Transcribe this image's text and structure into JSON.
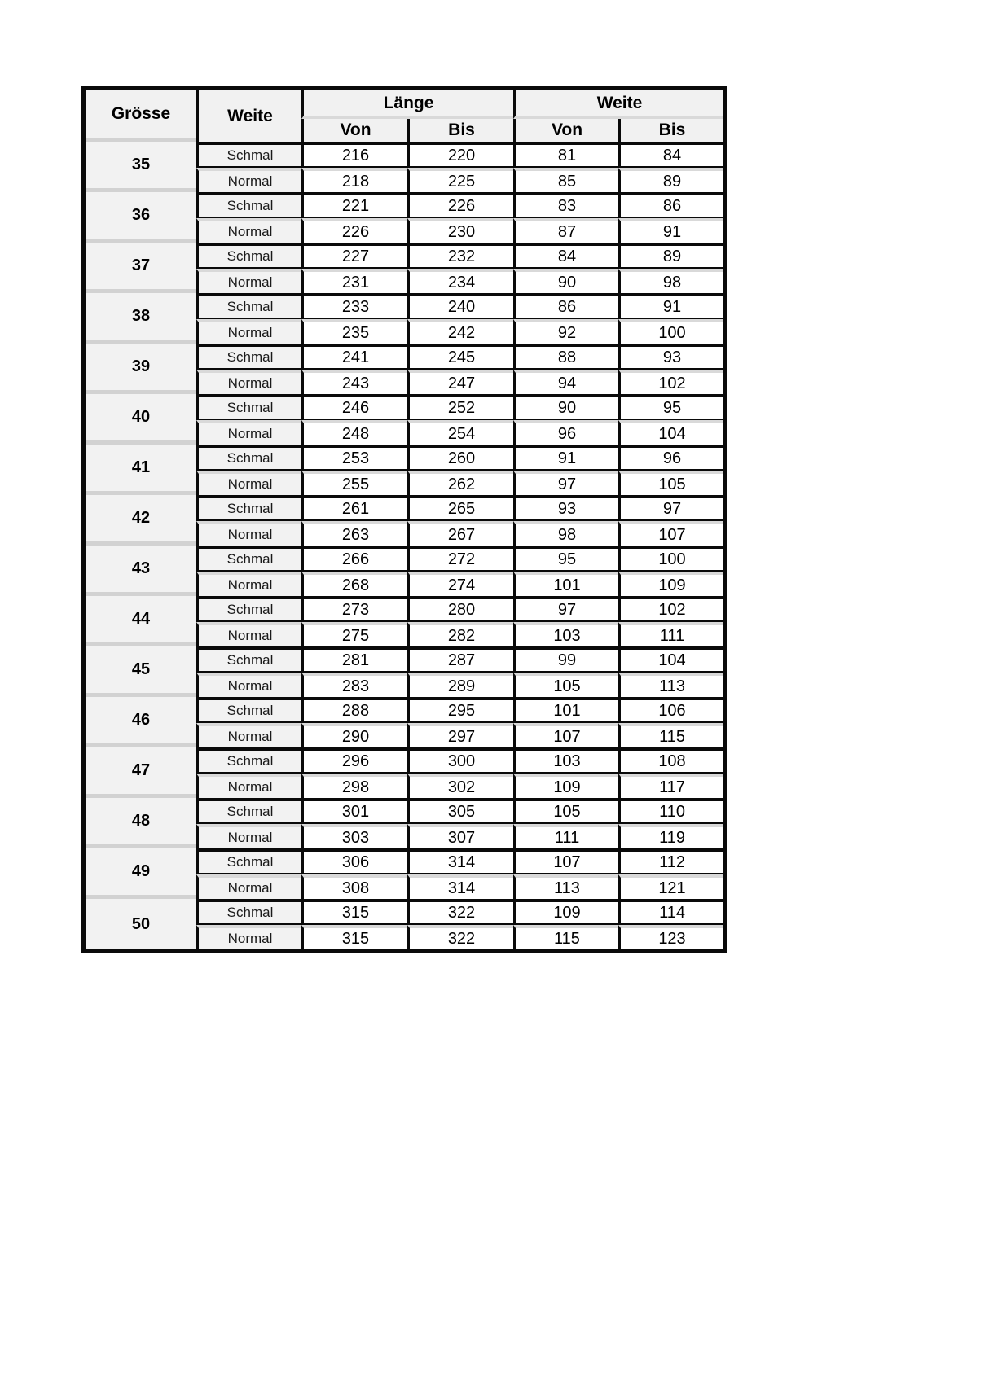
{
  "page": {
    "background": "#ffffff"
  },
  "colors": {
    "table_border": "#000000",
    "header_bg": "#f1f1f1",
    "label_column_bg": "#f2f2f2",
    "size_column_bg": "#f2f2f2",
    "row_separator_gray": "#d9d9d9",
    "size_separator_gray": "#d2d2d2",
    "data_cell_bg": "#ffffff",
    "text": "#000000"
  },
  "table": {
    "headers": {
      "size": "Grösse",
      "width_label": "Weite",
      "length_group": "Länge",
      "width_group": "Weite",
      "from": "Von",
      "to": "Bis"
    },
    "width_types": [
      "Schmal",
      "Normal"
    ],
    "rows": [
      {
        "size": "35",
        "variants": [
          {
            "label": "Schmal",
            "laenge_von": "216",
            "laenge_bis": "220",
            "weite_von": "81",
            "weite_bis": "84"
          },
          {
            "label": "Normal",
            "laenge_von": "218",
            "laenge_bis": "225",
            "weite_von": "85",
            "weite_bis": "89"
          }
        ]
      },
      {
        "size": "36",
        "variants": [
          {
            "label": "Schmal",
            "laenge_von": "221",
            "laenge_bis": "226",
            "weite_von": "83",
            "weite_bis": "86"
          },
          {
            "label": "Normal",
            "laenge_von": "226",
            "laenge_bis": "230",
            "weite_von": "87",
            "weite_bis": "91"
          }
        ]
      },
      {
        "size": "37",
        "variants": [
          {
            "label": "Schmal",
            "laenge_von": "227",
            "laenge_bis": "232",
            "weite_von": "84",
            "weite_bis": "89"
          },
          {
            "label": "Normal",
            "laenge_von": "231",
            "laenge_bis": "234",
            "weite_von": "90",
            "weite_bis": "98"
          }
        ]
      },
      {
        "size": "38",
        "variants": [
          {
            "label": "Schmal",
            "laenge_von": "233",
            "laenge_bis": "240",
            "weite_von": "86",
            "weite_bis": "91"
          },
          {
            "label": "Normal",
            "laenge_von": "235",
            "laenge_bis": "242",
            "weite_von": "92",
            "weite_bis": "100"
          }
        ]
      },
      {
        "size": "39",
        "variants": [
          {
            "label": "Schmal",
            "laenge_von": "241",
            "laenge_bis": "245",
            "weite_von": "88",
            "weite_bis": "93"
          },
          {
            "label": "Normal",
            "laenge_von": "243",
            "laenge_bis": "247",
            "weite_von": "94",
            "weite_bis": "102"
          }
        ]
      },
      {
        "size": "40",
        "variants": [
          {
            "label": "Schmal",
            "laenge_von": "246",
            "laenge_bis": "252",
            "weite_von": "90",
            "weite_bis": "95"
          },
          {
            "label": "Normal",
            "laenge_von": "248",
            "laenge_bis": "254",
            "weite_von": "96",
            "weite_bis": "104"
          }
        ]
      },
      {
        "size": "41",
        "variants": [
          {
            "label": "Schmal",
            "laenge_von": "253",
            "laenge_bis": "260",
            "weite_von": "91",
            "weite_bis": "96"
          },
          {
            "label": "Normal",
            "laenge_von": "255",
            "laenge_bis": "262",
            "weite_von": "97",
            "weite_bis": "105"
          }
        ]
      },
      {
        "size": "42",
        "variants": [
          {
            "label": "Schmal",
            "laenge_von": "261",
            "laenge_bis": "265",
            "weite_von": "93",
            "weite_bis": "97"
          },
          {
            "label": "Normal",
            "laenge_von": "263",
            "laenge_bis": "267",
            "weite_von": "98",
            "weite_bis": "107"
          }
        ]
      },
      {
        "size": "43",
        "variants": [
          {
            "label": "Schmal",
            "laenge_von": "266",
            "laenge_bis": "272",
            "weite_von": "95",
            "weite_bis": "100"
          },
          {
            "label": "Normal",
            "laenge_von": "268",
            "laenge_bis": "274",
            "weite_von": "101",
            "weite_bis": "109"
          }
        ]
      },
      {
        "size": "44",
        "variants": [
          {
            "label": "Schmal",
            "laenge_von": "273",
            "laenge_bis": "280",
            "weite_von": "97",
            "weite_bis": "102"
          },
          {
            "label": "Normal",
            "laenge_von": "275",
            "laenge_bis": "282",
            "weite_von": "103",
            "weite_bis": "111"
          }
        ]
      },
      {
        "size": "45",
        "variants": [
          {
            "label": "Schmal",
            "laenge_von": "281",
            "laenge_bis": "287",
            "weite_von": "99",
            "weite_bis": "104"
          },
          {
            "label": "Normal",
            "laenge_von": "283",
            "laenge_bis": "289",
            "weite_von": "105",
            "weite_bis": "113"
          }
        ]
      },
      {
        "size": "46",
        "variants": [
          {
            "label": "Schmal",
            "laenge_von": "288",
            "laenge_bis": "295",
            "weite_von": "101",
            "weite_bis": "106"
          },
          {
            "label": "Normal",
            "laenge_von": "290",
            "laenge_bis": "297",
            "weite_von": "107",
            "weite_bis": "115"
          }
        ]
      },
      {
        "size": "47",
        "variants": [
          {
            "label": "Schmal",
            "laenge_von": "296",
            "laenge_bis": "300",
            "weite_von": "103",
            "weite_bis": "108"
          },
          {
            "label": "Normal",
            "laenge_von": "298",
            "laenge_bis": "302",
            "weite_von": "109",
            "weite_bis": "117"
          }
        ]
      },
      {
        "size": "48",
        "variants": [
          {
            "label": "Schmal",
            "laenge_von": "301",
            "laenge_bis": "305",
            "weite_von": "105",
            "weite_bis": "110"
          },
          {
            "label": "Normal",
            "laenge_von": "303",
            "laenge_bis": "307",
            "weite_von": "111",
            "weite_bis": "119"
          }
        ]
      },
      {
        "size": "49",
        "variants": [
          {
            "label": "Schmal",
            "laenge_von": "306",
            "laenge_bis": "314",
            "weite_von": "107",
            "weite_bis": "112"
          },
          {
            "label": "Normal",
            "laenge_von": "308",
            "laenge_bis": "314",
            "weite_von": "113",
            "weite_bis": "121"
          }
        ]
      },
      {
        "size": "50",
        "variants": [
          {
            "label": "Schmal",
            "laenge_von": "315",
            "laenge_bis": "322",
            "weite_von": "109",
            "weite_bis": "114"
          },
          {
            "label": "Normal",
            "laenge_von": "315",
            "laenge_bis": "322",
            "weite_von": "115",
            "weite_bis": "123"
          }
        ]
      }
    ]
  }
}
